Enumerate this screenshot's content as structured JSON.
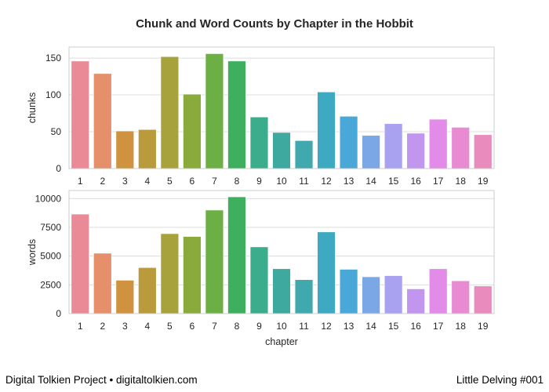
{
  "title": "Chunk and Word Counts by Chapter in the Hobbit",
  "footer": {
    "left": "Digital Tolkien Project • digitaltolkien.com",
    "right": "Little Delving #001"
  },
  "colors": [
    "#ea8a96",
    "#e5906a",
    "#cf923e",
    "#b99b3c",
    "#a8a23c",
    "#8aaa3c",
    "#6caf45",
    "#3daf5e",
    "#3cad8c",
    "#3eaa9f",
    "#3fa9ad",
    "#3eaac1",
    "#49a8d8",
    "#7ba7e6",
    "#a8a2f0",
    "#c196ef",
    "#e38be8",
    "#e88bd2",
    "#e98bbd"
  ],
  "chart_data": [
    {
      "type": "bar",
      "categories": [
        "1",
        "2",
        "3",
        "4",
        "5",
        "6",
        "7",
        "8",
        "9",
        "10",
        "11",
        "12",
        "13",
        "14",
        "15",
        "16",
        "17",
        "18",
        "19"
      ],
      "values": [
        146,
        129,
        51,
        53,
        152,
        101,
        156,
        146,
        70,
        49,
        38,
        104,
        71,
        45,
        61,
        48,
        67,
        56,
        46
      ],
      "xlabel": "",
      "ylabel": "chunks",
      "ylim": [
        0,
        165
      ],
      "yticks": [
        "0",
        "50",
        "100",
        "150"
      ],
      "grid": true
    },
    {
      "type": "bar",
      "categories": [
        "1",
        "2",
        "3",
        "4",
        "5",
        "6",
        "7",
        "8",
        "9",
        "10",
        "11",
        "12",
        "13",
        "14",
        "15",
        "16",
        "17",
        "18",
        "19"
      ],
      "values": [
        8650,
        5250,
        2900,
        4000,
        6950,
        6700,
        9000,
        10150,
        5800,
        3900,
        2950,
        7100,
        3850,
        3200,
        3300,
        2150,
        3900,
        2850,
        2400
      ],
      "xlabel": "chapter",
      "ylabel": "words",
      "ylim": [
        0,
        10700
      ],
      "yticks": [
        "0",
        "2500",
        "5000",
        "7500",
        "10000"
      ],
      "grid": true
    }
  ]
}
